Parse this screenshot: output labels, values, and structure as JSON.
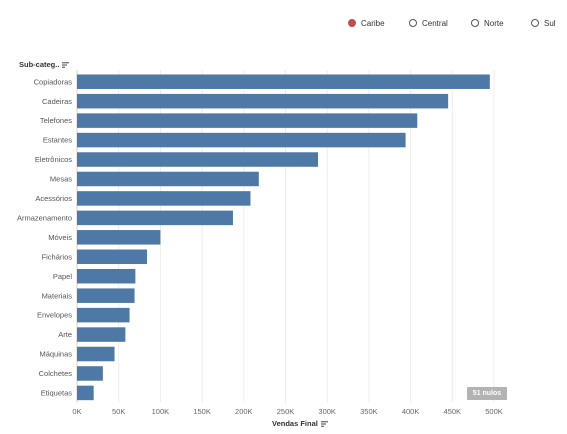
{
  "legend": {
    "items": [
      {
        "label": "Caribe",
        "active": true
      },
      {
        "label": "Central",
        "active": false
      },
      {
        "label": "Norte",
        "active": false
      },
      {
        "label": "Sul",
        "active": false
      }
    ]
  },
  "chart_data": {
    "type": "bar",
    "orientation": "horizontal",
    "row_header": "Sub-categ..",
    "xlabel": "Vendas Final",
    "categories": [
      "Copiadoras",
      "Cadeiras",
      "Telefones",
      "Estantes",
      "Eletrônicos",
      "Mesas",
      "Acessórios",
      "Armazenamento",
      "Móveis",
      "Fichários",
      "Papel",
      "Materiais",
      "Envelopes",
      "Arte",
      "Máquinas",
      "Colchetes",
      "Etiquetas"
    ],
    "values": [
      495000,
      445000,
      408000,
      394000,
      289000,
      218000,
      208000,
      187000,
      100000,
      84000,
      70000,
      69000,
      63000,
      58000,
      45000,
      31000,
      20000
    ],
    "xlim": [
      0,
      500000
    ],
    "xticks": [
      0,
      50000,
      100000,
      150000,
      200000,
      250000,
      300000,
      350000,
      400000,
      450000,
      500000
    ],
    "xtick_labels": [
      "0K",
      "50K",
      "100K",
      "150K",
      "200K",
      "250K",
      "300K",
      "350K",
      "400K",
      "450K",
      "500K"
    ],
    "bar_color": "#4e79a7",
    "grid": "vertical",
    "nulls_indicator": "51 nulos"
  }
}
